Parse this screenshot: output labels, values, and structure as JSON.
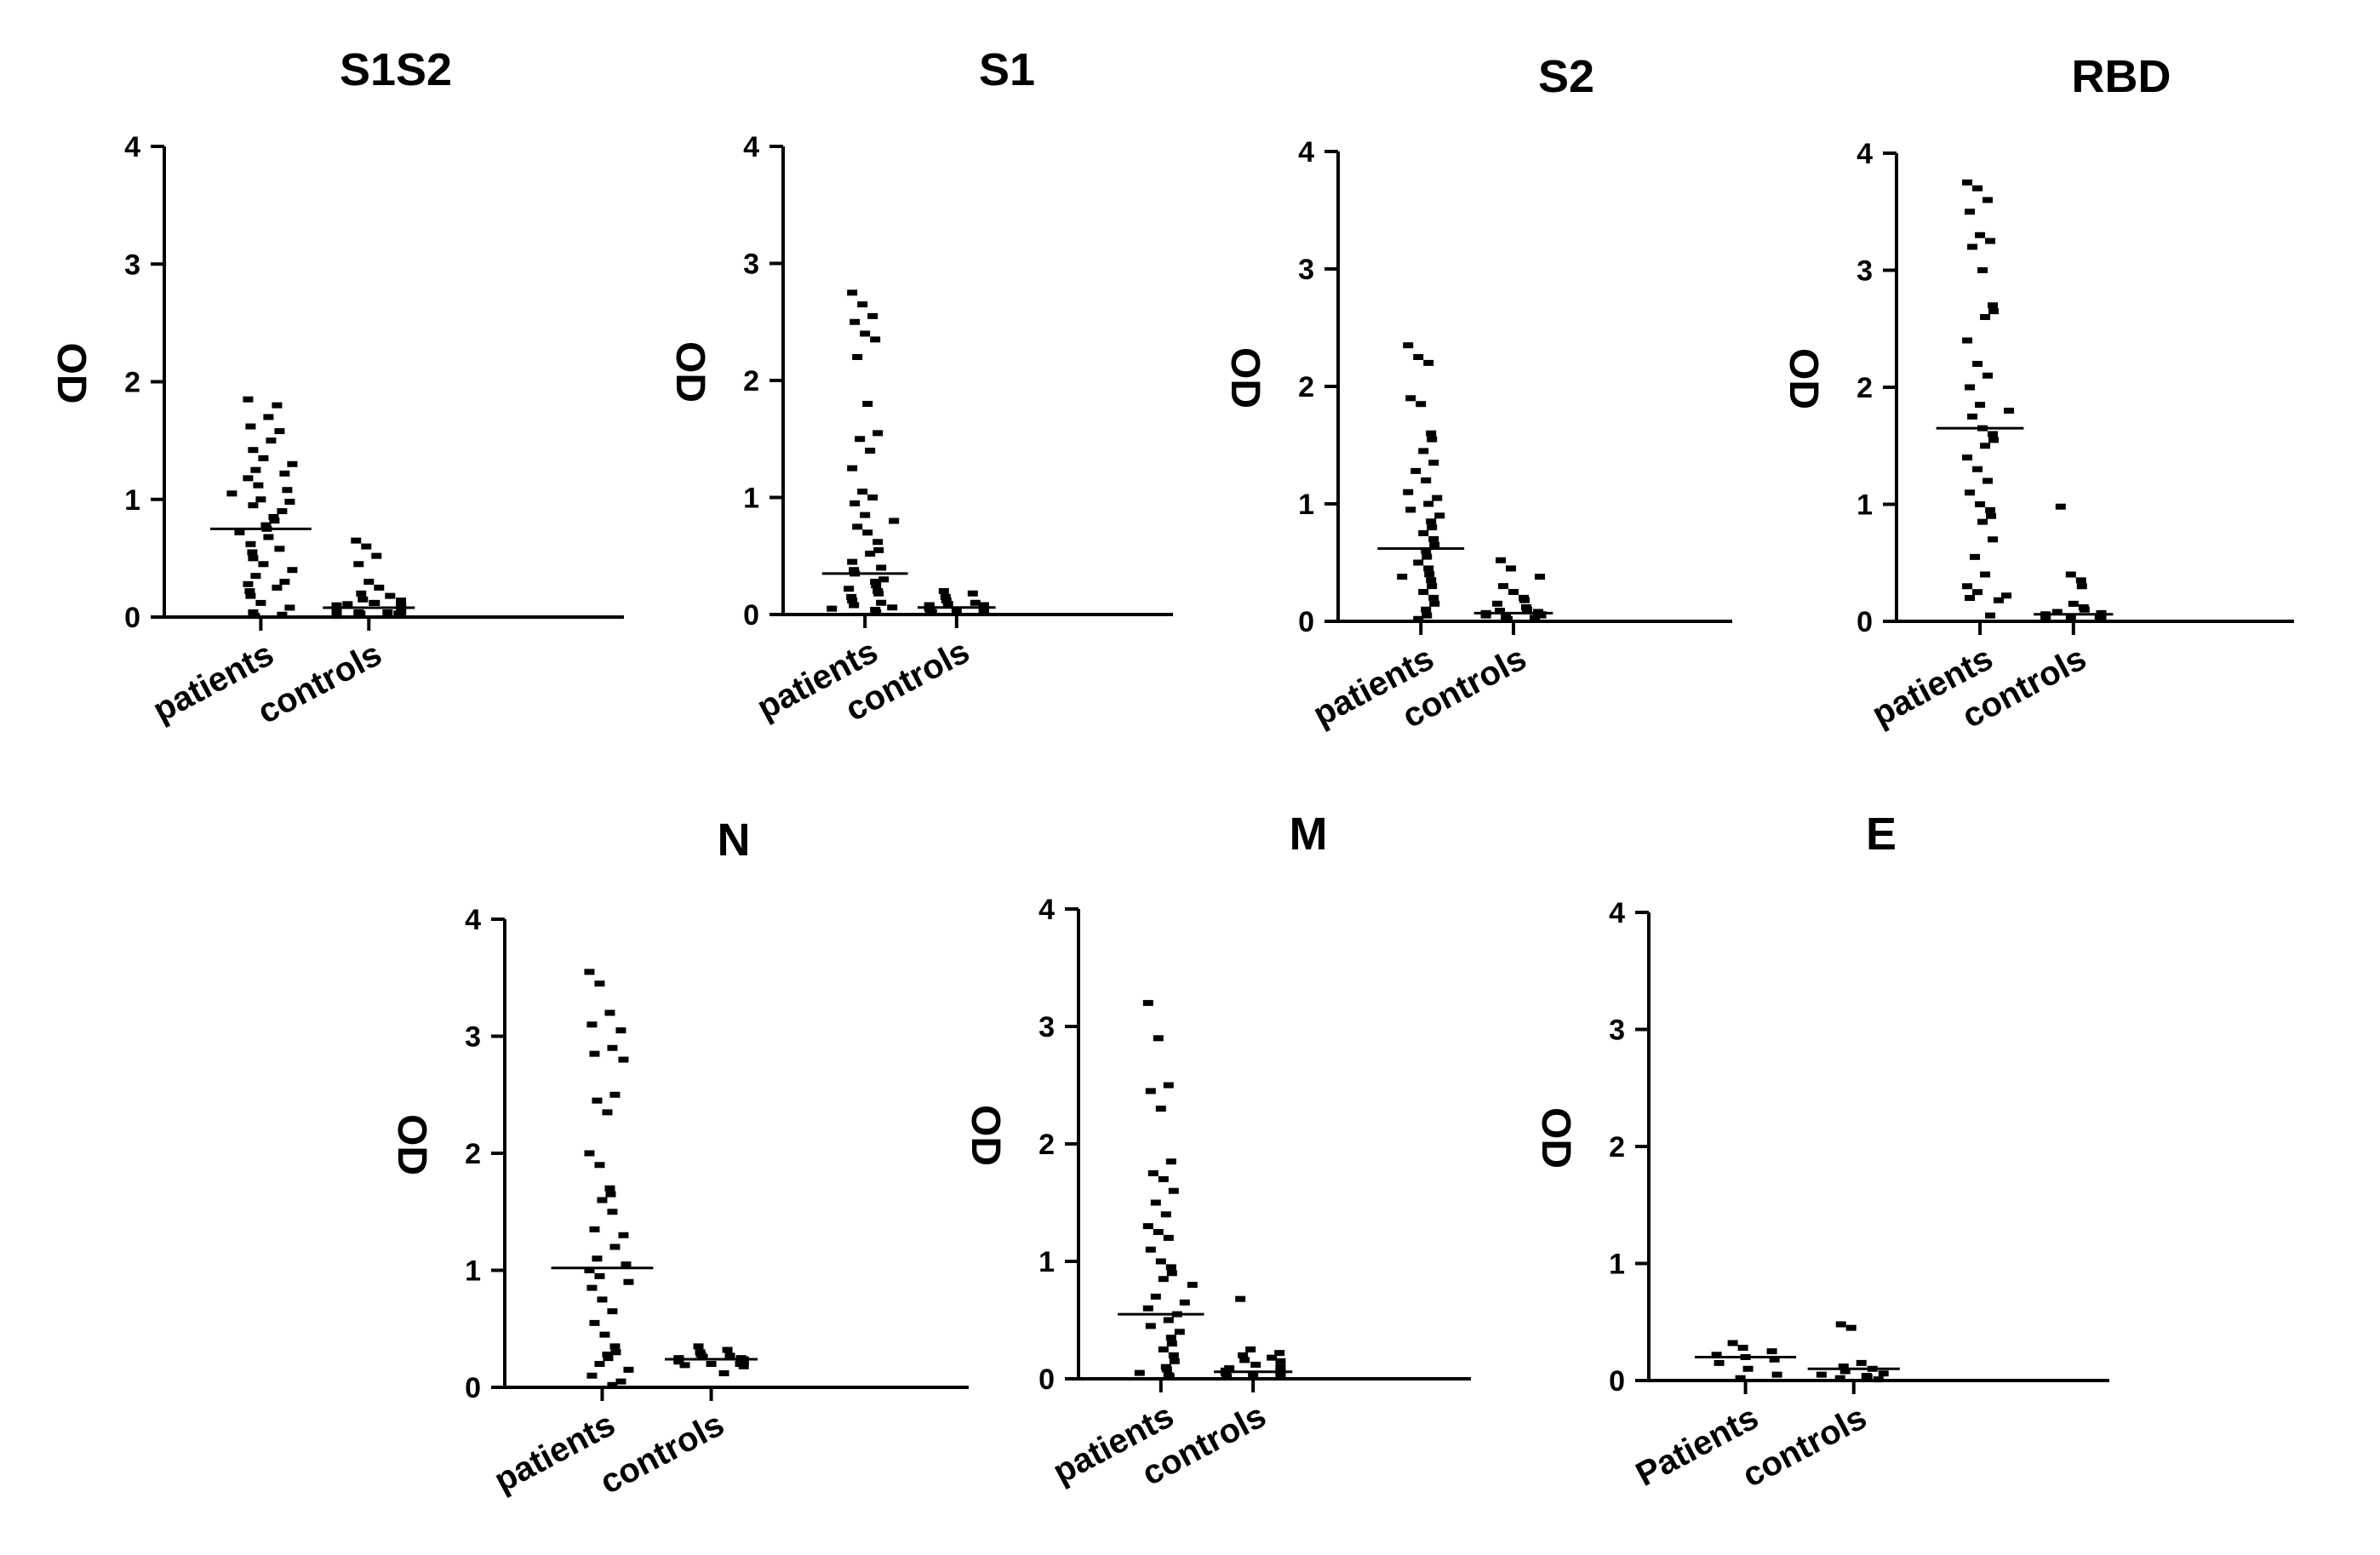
{
  "chart_data": [
    {
      "type": "scatter",
      "title": "S1S2",
      "ylabel": "OD",
      "ylim": [
        0,
        4
      ],
      "yticks": [
        0,
        1,
        2,
        3,
        4
      ],
      "categories": [
        "patients",
        "controls"
      ],
      "series": [
        {
          "values": [
            1.85,
            1.8,
            1.7,
            1.62,
            1.58,
            1.5,
            1.42,
            1.35,
            1.3,
            1.25,
            1.22,
            1.18,
            1.12,
            1.08,
            1.05,
            1.0,
            0.98,
            0.95,
            0.9,
            0.85,
            0.82,
            0.78,
            0.75,
            0.72,
            0.68,
            0.62,
            0.58,
            0.55,
            0.5,
            0.45,
            0.4,
            0.35,
            0.3,
            0.28,
            0.25,
            0.22,
            0.18,
            0.12,
            0.08,
            0.04,
            0.02,
            0.01
          ]
        },
        {
          "values": [
            0.65,
            0.6,
            0.52,
            0.45,
            0.3,
            0.25,
            0.2,
            0.18,
            0.15,
            0.14,
            0.12,
            0.12,
            0.11,
            0.1,
            0.1,
            0.09,
            0.09,
            0.08,
            0.08,
            0.07,
            0.07,
            0.06,
            0.06,
            0.05,
            0.05,
            0.04,
            0.04,
            0.03,
            0.03,
            0.02,
            0.02,
            0.01
          ]
        }
      ],
      "means": [
        0.75,
        0.08
      ]
    },
    {
      "type": "scatter",
      "title": "S1",
      "ylabel": "OD",
      "ylim": [
        0,
        4
      ],
      "yticks": [
        0,
        1,
        2,
        3,
        4
      ],
      "categories": [
        "patients",
        "controls"
      ],
      "series": [
        {
          "values": [
            2.75,
            2.65,
            2.55,
            2.5,
            2.4,
            2.35,
            2.2,
            1.8,
            1.55,
            1.5,
            1.4,
            1.25,
            1.05,
            1.0,
            0.95,
            0.85,
            0.8,
            0.75,
            0.7,
            0.62,
            0.55,
            0.52,
            0.45,
            0.4,
            0.38,
            0.35,
            0.3,
            0.28,
            0.25,
            0.22,
            0.2,
            0.18,
            0.15,
            0.12,
            0.1,
            0.08,
            0.06,
            0.05,
            0.04,
            0.02
          ]
        },
        {
          "values": [
            0.2,
            0.18,
            0.15,
            0.12,
            0.1,
            0.09,
            0.08,
            0.08,
            0.07,
            0.07,
            0.06,
            0.06,
            0.05,
            0.05,
            0.05,
            0.04,
            0.04,
            0.03,
            0.03,
            0.02
          ]
        }
      ],
      "means": [
        0.35,
        0.06
      ]
    },
    {
      "type": "scatter",
      "title": "S2",
      "ylabel": "OD",
      "ylim": [
        0,
        4
      ],
      "yticks": [
        0,
        1,
        2,
        3,
        4
      ],
      "categories": [
        "patients",
        "controls"
      ],
      "series": [
        {
          "values": [
            2.35,
            2.25,
            2.2,
            1.9,
            1.85,
            1.6,
            1.55,
            1.45,
            1.35,
            1.28,
            1.2,
            1.1,
            1.05,
            1.0,
            0.95,
            0.9,
            0.85,
            0.8,
            0.75,
            0.7,
            0.65,
            0.6,
            0.55,
            0.5,
            0.45,
            0.4,
            0.38,
            0.35,
            0.3,
            0.25,
            0.2,
            0.15,
            0.1,
            0.05,
            0.02
          ]
        },
        {
          "values": [
            0.52,
            0.45,
            0.38,
            0.3,
            0.25,
            0.2,
            0.18,
            0.15,
            0.12,
            0.1,
            0.09,
            0.08,
            0.07,
            0.06,
            0.06,
            0.05,
            0.05,
            0.04,
            0.03,
            0.02
          ]
        }
      ],
      "means": [
        0.62,
        0.07
      ]
    },
    {
      "type": "scatter",
      "title": "RBD",
      "ylabel": "OD",
      "ylim": [
        0,
        4
      ],
      "yticks": [
        0,
        1,
        2,
        3,
        4
      ],
      "categories": [
        "patients",
        "controls"
      ],
      "series": [
        {
          "values": [
            3.75,
            3.7,
            3.6,
            3.5,
            3.3,
            3.25,
            3.2,
            3.0,
            2.7,
            2.65,
            2.6,
            2.4,
            2.2,
            2.1,
            2.0,
            1.85,
            1.8,
            1.75,
            1.65,
            1.6,
            1.55,
            1.5,
            1.4,
            1.3,
            1.2,
            1.1,
            1.0,
            0.95,
            0.9,
            0.85,
            0.7,
            0.55,
            0.4,
            0.3,
            0.25,
            0.22,
            0.2,
            0.18,
            0.05
          ]
        },
        {
          "values": [
            0.98,
            0.4,
            0.35,
            0.3,
            0.15,
            0.12,
            0.1,
            0.08,
            0.07,
            0.06,
            0.05,
            0.05,
            0.04,
            0.04,
            0.03,
            0.02
          ]
        }
      ],
      "means": [
        1.65,
        0.06
      ]
    },
    {
      "type": "scatter",
      "title": "N",
      "ylabel": "OD",
      "ylim": [
        0,
        4
      ],
      "yticks": [
        0,
        1,
        2,
        3,
        4
      ],
      "categories": [
        "patients",
        "controls"
      ],
      "series": [
        {
          "values": [
            3.55,
            3.45,
            3.2,
            3.1,
            3.05,
            2.9,
            2.85,
            2.8,
            2.5,
            2.45,
            2.35,
            2.0,
            1.9,
            1.7,
            1.65,
            1.6,
            1.5,
            1.35,
            1.3,
            1.2,
            1.1,
            1.05,
            1.0,
            0.95,
            0.9,
            0.85,
            0.75,
            0.65,
            0.55,
            0.45,
            0.35,
            0.3,
            0.28,
            0.25,
            0.2,
            0.15,
            0.1,
            0.05,
            0.02
          ]
        },
        {
          "values": [
            0.35,
            0.32,
            0.3,
            0.28,
            0.27,
            0.26,
            0.25,
            0.25,
            0.24,
            0.24,
            0.23,
            0.23,
            0.22,
            0.22,
            0.21,
            0.2,
            0.2,
            0.19,
            0.18,
            0.12
          ]
        }
      ],
      "means": [
        1.02,
        0.24
      ]
    },
    {
      "type": "scatter",
      "title": "M",
      "ylabel": "OD",
      "ylim": [
        0,
        4
      ],
      "yticks": [
        0,
        1,
        2,
        3,
        4
      ],
      "categories": [
        "patients",
        "controls"
      ],
      "series": [
        {
          "values": [
            3.2,
            2.9,
            2.5,
            2.45,
            2.3,
            1.85,
            1.75,
            1.7,
            1.6,
            1.5,
            1.4,
            1.3,
            1.25,
            1.2,
            1.1,
            1.0,
            0.95,
            0.9,
            0.85,
            0.8,
            0.7,
            0.65,
            0.6,
            0.55,
            0.5,
            0.45,
            0.4,
            0.35,
            0.3,
            0.25,
            0.2,
            0.15,
            0.1,
            0.08,
            0.05,
            0.03,
            0.02
          ]
        },
        {
          "values": [
            0.68,
            0.25,
            0.22,
            0.2,
            0.18,
            0.16,
            0.15,
            0.12,
            0.1,
            0.09,
            0.08,
            0.07,
            0.06,
            0.05,
            0.05,
            0.04,
            0.03,
            0.02
          ]
        }
      ],
      "means": [
        0.55,
        0.06
      ]
    },
    {
      "type": "scatter",
      "title": "E",
      "ylabel": "OD",
      "ylim": [
        0,
        4
      ],
      "yticks": [
        0,
        1,
        2,
        3,
        4
      ],
      "categories": [
        "Patients",
        "controls"
      ],
      "series": [
        {
          "values": [
            0.32,
            0.28,
            0.25,
            0.22,
            0.2,
            0.18,
            0.15,
            0.1,
            0.05,
            0.02
          ]
        },
        {
          "values": [
            0.48,
            0.45,
            0.15,
            0.12,
            0.1,
            0.08,
            0.06,
            0.05,
            0.04,
            0.03,
            0.02,
            0.01
          ]
        }
      ],
      "means": [
        0.2,
        0.1
      ]
    }
  ]
}
